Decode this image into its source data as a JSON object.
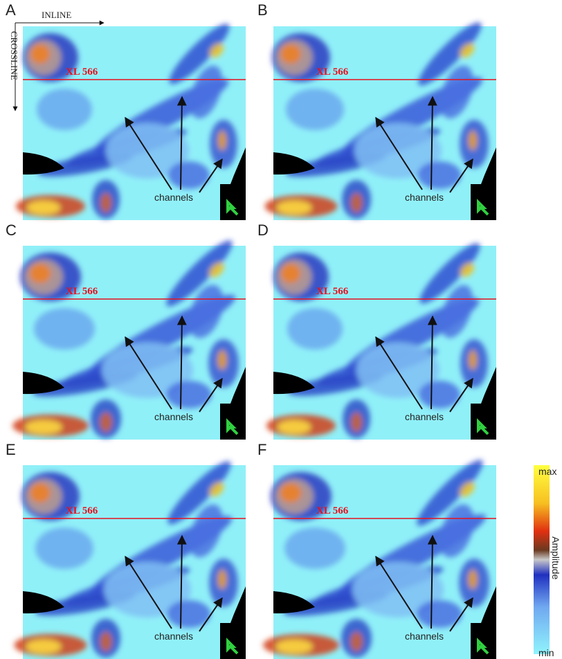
{
  "figure": {
    "inline_label": "INLINE",
    "crossline_label": "CROSSLINE",
    "panels": [
      {
        "letter": "A",
        "line_label": "XL 566",
        "feature_label": "channels"
      },
      {
        "letter": "B",
        "line_label": "XL 566",
        "feature_label": "channels"
      },
      {
        "letter": "C",
        "line_label": "XL 566",
        "feature_label": "channels"
      },
      {
        "letter": "D",
        "line_label": "XL 566",
        "feature_label": "channels"
      },
      {
        "letter": "E",
        "line_label": "XL 566",
        "feature_label": "channels"
      },
      {
        "letter": "F",
        "line_label": "XL 566",
        "feature_label": "channels"
      }
    ],
    "colorbar": {
      "top_label": "max",
      "title": "Amplitude",
      "bottom_label": "min"
    }
  }
}
